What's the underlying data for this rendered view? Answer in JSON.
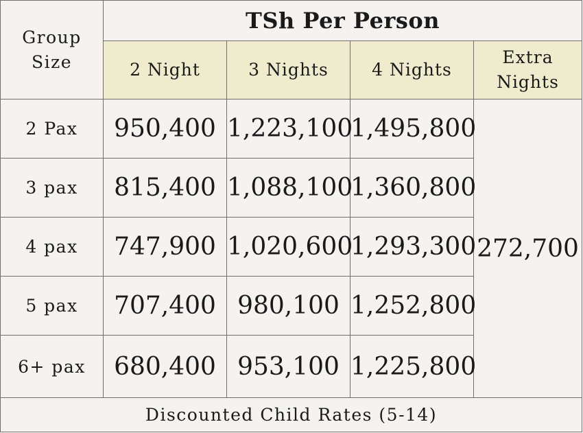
{
  "header": {
    "group_size_label": "Group Size",
    "title": "TSh Per Person",
    "columns": [
      "2 Night",
      "3 Nights",
      "4 Nights",
      "Extra Nights"
    ]
  },
  "rows": [
    {
      "label": "2 Pax",
      "prices": [
        "950,400",
        "1,223,100",
        "1,495,800"
      ]
    },
    {
      "label": "3 pax",
      "prices": [
        "815,400",
        "1,088,100",
        "1,360,800"
      ]
    },
    {
      "label": "4 pax",
      "prices": [
        "747,900",
        "1,020,600",
        "1,293,300"
      ]
    },
    {
      "label": "5 pax",
      "prices": [
        "707,400",
        "980,100",
        "1,252,800"
      ]
    },
    {
      "label": "6+ pax",
      "prices": [
        "680,400",
        "953,100",
        "1,225,800"
      ]
    }
  ],
  "extra_nights_price": "272,700",
  "footer": "Discounted Child Rates (5-14)"
}
